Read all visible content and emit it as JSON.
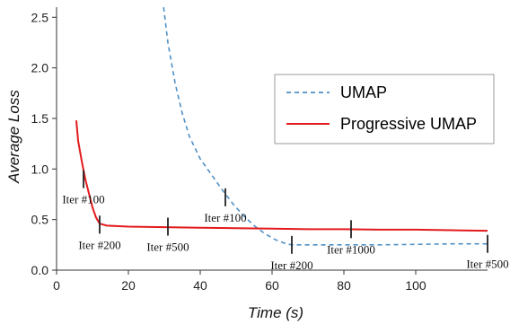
{
  "chart_data": {
    "type": "line",
    "xlabel": "Time (s)",
    "ylabel": "Average Loss",
    "xlim": [
      0,
      120
    ],
    "ylim": [
      0,
      2.6
    ],
    "xticks": [
      0,
      20,
      40,
      60,
      80,
      100
    ],
    "yticks": [
      0.0,
      0.5,
      1.0,
      1.5,
      2.0,
      2.5
    ],
    "xtick_labels": [
      "0",
      "20",
      "40",
      "60",
      "80",
      "100"
    ],
    "ytick_labels": [
      "0.0",
      "0.5",
      "1.0",
      "1.5",
      "2.0",
      "2.5"
    ],
    "legend_position": "top-right",
    "series": [
      {
        "name": "UMAP",
        "style": "dashed",
        "color": "#4f8fc4",
        "x": [
          29.8,
          31,
          33,
          35,
          37,
          40,
          43,
          46,
          49,
          52,
          55,
          58,
          61,
          64,
          65.5,
          70,
          80,
          90,
          100,
          110,
          120
        ],
        "y": [
          2.6,
          2.25,
          1.85,
          1.55,
          1.32,
          1.1,
          0.95,
          0.8,
          0.66,
          0.54,
          0.44,
          0.36,
          0.3,
          0.26,
          0.25,
          0.25,
          0.25,
          0.25,
          0.255,
          0.26,
          0.26
        ]
      },
      {
        "name": "Progressive UMAP",
        "style": "solid",
        "color": "#e31a1c",
        "x": [
          5.5,
          6,
          7,
          8,
          9,
          10,
          11,
          12,
          14,
          20,
          30,
          40,
          50,
          60,
          70,
          80,
          90,
          100,
          110,
          120
        ],
        "y": [
          1.48,
          1.28,
          1.08,
          0.9,
          0.76,
          0.62,
          0.52,
          0.46,
          0.44,
          0.43,
          0.425,
          0.42,
          0.415,
          0.41,
          0.405,
          0.405,
          0.4,
          0.4,
          0.395,
          0.39
        ]
      }
    ],
    "annotations": [
      {
        "text": "Iter #100",
        "x": 7.5,
        "y": 0.9,
        "label_side": "below"
      },
      {
        "text": "Iter #200",
        "x": 12,
        "y": 0.45,
        "label_side": "below"
      },
      {
        "text": "Iter #500",
        "x": 31,
        "y": 0.43,
        "label_side": "below"
      },
      {
        "text": "Iter #100",
        "x": 47,
        "y": 0.72,
        "label_side": "below"
      },
      {
        "text": "Iter #200",
        "x": 65.5,
        "y": 0.25,
        "label_side": "below"
      },
      {
        "text": "Iter #1000",
        "x": 82,
        "y": 0.405,
        "label_side": "below"
      },
      {
        "text": "Iter #500",
        "x": 120,
        "y": 0.26,
        "label_side": "below"
      }
    ]
  }
}
